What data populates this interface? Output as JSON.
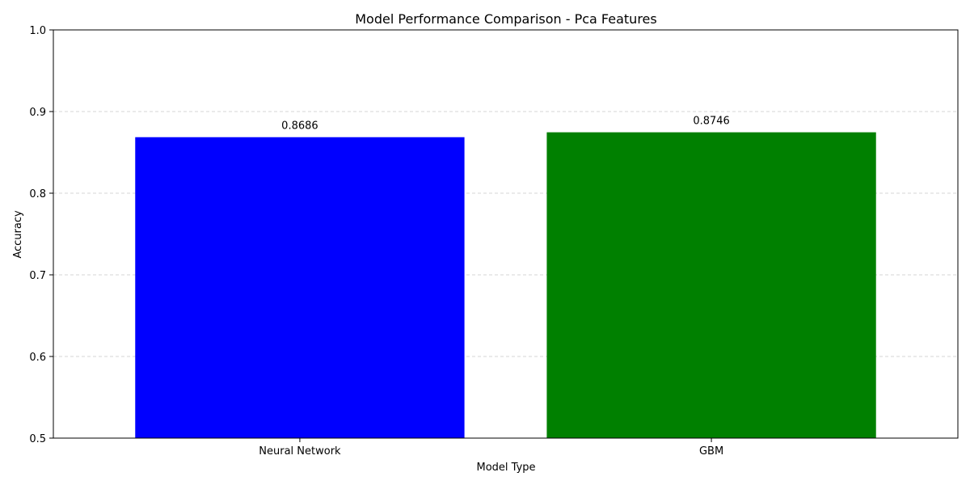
{
  "chart_data": {
    "type": "bar",
    "title": "Model Performance Comparison - Pca Features",
    "xlabel": "Model Type",
    "ylabel": "Accuracy",
    "categories": [
      "Neural Network",
      "GBM"
    ],
    "values": [
      0.8686,
      0.8746
    ],
    "value_labels": [
      "0.8686",
      "0.8746"
    ],
    "colors": [
      "#0000ff",
      "#008000"
    ],
    "ylim": [
      0.5,
      1.0
    ],
    "yticks": [
      0.5,
      0.6,
      0.7,
      0.8,
      0.9,
      1.0
    ],
    "ytick_labels": [
      "0.5",
      "0.6",
      "0.7",
      "0.8",
      "0.9",
      "1.0"
    ],
    "grid": "y-dashed",
    "legend": "none"
  }
}
